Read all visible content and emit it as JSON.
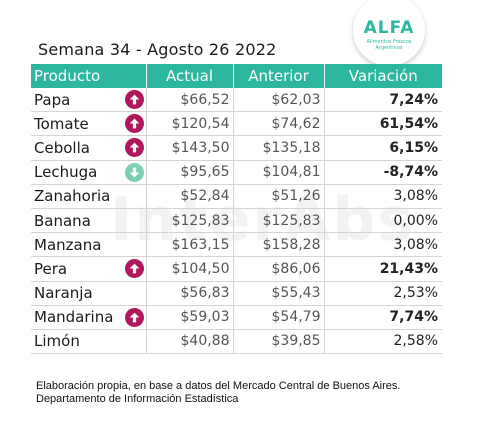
{
  "title": "Semana 34 - Agosto 26 2022",
  "logo": {
    "word": "ALFA",
    "subtitle": "Alimentos Frescos Argentinos"
  },
  "watermark": "InterAbs",
  "colors": {
    "header_bg": "#2db7a0",
    "arrow_up": "#b0175e",
    "arrow_down": "#7dcfb4"
  },
  "table": {
    "columns": [
      "Producto",
      "Actual",
      "Anterior",
      "Variación"
    ],
    "rows": [
      {
        "product": "Papa",
        "actual": "$66,52",
        "anterior": "$62,03",
        "variacion": "7,24%",
        "trend": "up",
        "bold": true
      },
      {
        "product": "Tomate",
        "actual": "$120,54",
        "anterior": "$74,62",
        "variacion": "61,54%",
        "trend": "up",
        "bold": true
      },
      {
        "product": "Cebolla",
        "actual": "$143,50",
        "anterior": "$135,18",
        "variacion": "6,15%",
        "trend": "up",
        "bold": true
      },
      {
        "product": "Lechuga",
        "actual": "$95,65",
        "anterior": "$104,81",
        "variacion": "-8,74%",
        "trend": "down",
        "bold": true
      },
      {
        "product": "Zanahoria",
        "actual": "$52,84",
        "anterior": "$51,26",
        "variacion": "3,08%",
        "trend": "none",
        "bold": false
      },
      {
        "product": "Banana",
        "actual": "$125,83",
        "anterior": "$125,83",
        "variacion": "0,00%",
        "trend": "none",
        "bold": false
      },
      {
        "product": "Manzana",
        "actual": "$163,15",
        "anterior": "$158,28",
        "variacion": "3,08%",
        "trend": "none",
        "bold": false
      },
      {
        "product": "Pera",
        "actual": "$104,50",
        "anterior": "$86,06",
        "variacion": "21,43%",
        "trend": "up",
        "bold": true
      },
      {
        "product": "Naranja",
        "actual": "$56,83",
        "anterior": "$55,43",
        "variacion": "2,53%",
        "trend": "none",
        "bold": false
      },
      {
        "product": "Mandarina",
        "actual": "$59,03",
        "anterior": "$54,79",
        "variacion": "7,74%",
        "trend": "up",
        "bold": true
      },
      {
        "product": "Limón",
        "actual": "$40,88",
        "anterior": "$39,85",
        "variacion": "2,58%",
        "trend": "none",
        "bold": false
      }
    ]
  },
  "footer": {
    "line1": "Elaboración propia, en base a datos del Mercado Central de Buenos Aires.",
    "line2": "Departamento de Información Estadística"
  }
}
